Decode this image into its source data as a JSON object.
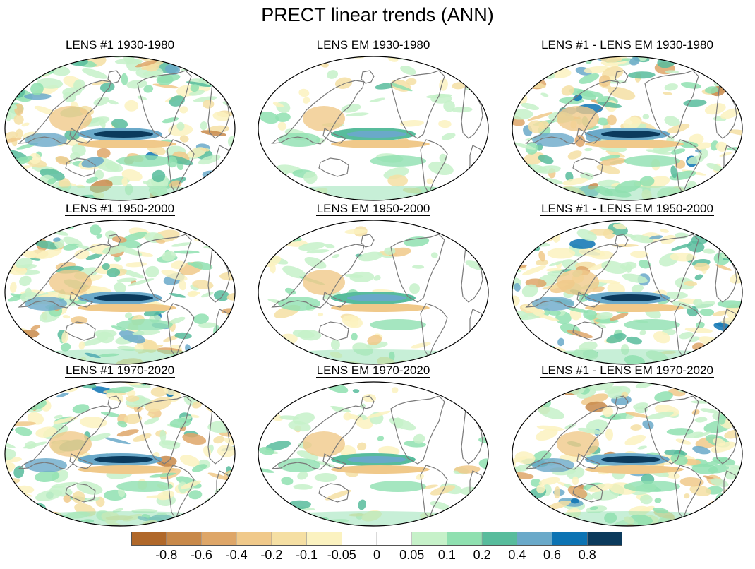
{
  "title": "PRECT linear trends (ANN)",
  "panels": [
    {
      "label": "LENS #1 1930-1980",
      "row": 0,
      "col": 0,
      "type": "single"
    },
    {
      "label": "LENS EM 1930-1980",
      "row": 0,
      "col": 1,
      "type": "mean"
    },
    {
      "label": "LENS #1 - LENS EM 1930-1980",
      "row": 0,
      "col": 2,
      "type": "diff"
    },
    {
      "label": "LENS #1 1950-2000",
      "row": 1,
      "col": 0,
      "type": "single"
    },
    {
      "label": "LENS EM 1950-2000",
      "row": 1,
      "col": 1,
      "type": "mean"
    },
    {
      "label": "LENS #1 - LENS EM 1950-2000",
      "row": 1,
      "col": 2,
      "type": "diff"
    },
    {
      "label": "LENS #1 1970-2020",
      "row": 2,
      "col": 0,
      "type": "single"
    },
    {
      "label": "LENS EM 1970-2020",
      "row": 2,
      "col": 1,
      "type": "mean"
    },
    {
      "label": "LENS #1 - LENS EM 1970-2020",
      "row": 2,
      "col": 2,
      "type": "diff"
    }
  ],
  "colorbar": {
    "labels": [
      "-0.8",
      "-0.6",
      "-0.4",
      "-0.2",
      "-0.1",
      "-0.05",
      "0",
      "0.05",
      "0.1",
      "0.2",
      "0.4",
      "0.6",
      "0.8"
    ],
    "colors": [
      "#b0682a",
      "#c8894a",
      "#dea668",
      "#f0c98a",
      "#f5dfa3",
      "#fbf2c0",
      "#ffffff",
      "#ffffff",
      "#c6f1c9",
      "#8fe0b0",
      "#58bc9c",
      "#6aa9c9",
      "#0c73b3",
      "#0b3a5c"
    ]
  }
}
